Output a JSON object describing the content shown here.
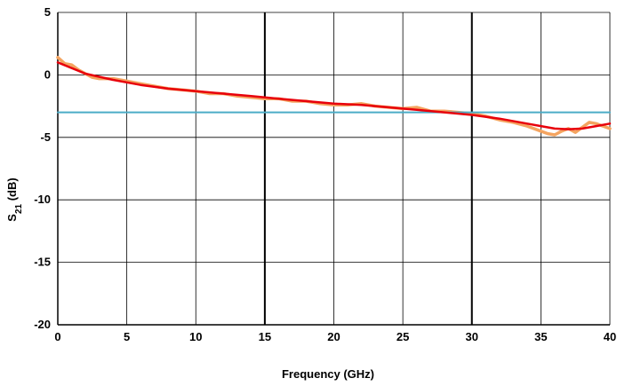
{
  "chart_data": {
    "type": "line",
    "xlabel": "Frequency (GHz)",
    "ylabel_main": "S",
    "ylabel_sub": "21",
    "ylabel_unit": " (dB)",
    "xlim": [
      0,
      40
    ],
    "ylim": [
      -20,
      5
    ],
    "x_ticks": [
      0,
      5,
      10,
      15,
      20,
      25,
      30,
      35,
      40
    ],
    "y_ticks": [
      5,
      0,
      -5,
      -10,
      -15,
      -20
    ],
    "x_tick_labels": [
      "0",
      "5",
      "10",
      "15",
      "20",
      "25",
      "30",
      "35",
      "40"
    ],
    "y_tick_labels": [
      "5",
      "0",
      "-5",
      "-10",
      "-15",
      "-20"
    ],
    "grid": true,
    "bold_gridlines_x": [
      15,
      30
    ],
    "colors": {
      "measured": "#f4a460",
      "fit": "#e8000b",
      "reference": "#4bacc6",
      "grid": "#000000"
    },
    "series": [
      {
        "role": "measured",
        "x": [
          0,
          0.5,
          1,
          1.5,
          2,
          2.5,
          3,
          4,
          5,
          6,
          7,
          8,
          9,
          10,
          11,
          12,
          13,
          14,
          15,
          16,
          17,
          18,
          19,
          20,
          21,
          22,
          23,
          24,
          25,
          26,
          27,
          28,
          29,
          30,
          31,
          32,
          33,
          34,
          35,
          35.5,
          36,
          36.5,
          37,
          37.5,
          38,
          38.5,
          39,
          39.5,
          40
        ],
        "y": [
          1.4,
          0.9,
          0.8,
          0.4,
          0.1,
          -0.2,
          -0.3,
          -0.3,
          -0.5,
          -0.7,
          -0.9,
          -1.1,
          -1.2,
          -1.3,
          -1.5,
          -1.5,
          -1.7,
          -1.8,
          -1.9,
          -1.9,
          -2.1,
          -2.1,
          -2.3,
          -2.4,
          -2.4,
          -2.3,
          -2.5,
          -2.6,
          -2.7,
          -2.6,
          -2.9,
          -2.9,
          -3.0,
          -3.1,
          -3.3,
          -3.6,
          -3.8,
          -4.1,
          -4.5,
          -4.7,
          -4.8,
          -4.5,
          -4.3,
          -4.6,
          -4.2,
          -3.8,
          -3.9,
          -4.1,
          -4.3
        ]
      },
      {
        "role": "fit",
        "x": [
          0,
          2,
          4,
          6,
          8,
          10,
          12,
          14,
          16,
          18,
          20,
          22,
          24,
          26,
          28,
          30,
          32,
          34,
          35,
          36,
          37,
          38,
          39,
          40
        ],
        "y": [
          1.0,
          0.1,
          -0.4,
          -0.8,
          -1.1,
          -1.3,
          -1.5,
          -1.7,
          -1.9,
          -2.1,
          -2.3,
          -2.4,
          -2.6,
          -2.8,
          -3.0,
          -3.2,
          -3.5,
          -3.9,
          -4.1,
          -4.3,
          -4.35,
          -4.3,
          -4.1,
          -3.9
        ]
      },
      {
        "role": "reference",
        "x": [
          0,
          40
        ],
        "y": [
          -3,
          -3
        ]
      }
    ]
  }
}
